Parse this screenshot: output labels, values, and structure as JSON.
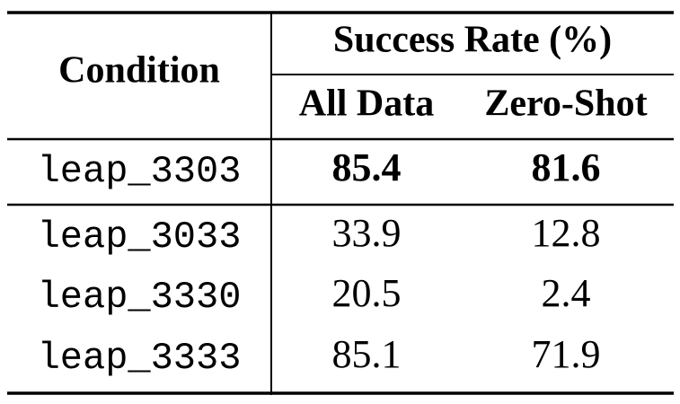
{
  "header": {
    "condition": "Condition",
    "group": "Success Rate (%)",
    "columns": [
      "All Data",
      "Zero-Shot"
    ]
  },
  "rows": [
    [
      "leap_3303",
      85.4,
      81.6
    ],
    [
      "leap_3033",
      33.9,
      12.8
    ],
    [
      "leap_3330",
      20.5,
      2.4
    ],
    [
      "leap_3333",
      85.1,
      71.9
    ]
  ]
}
